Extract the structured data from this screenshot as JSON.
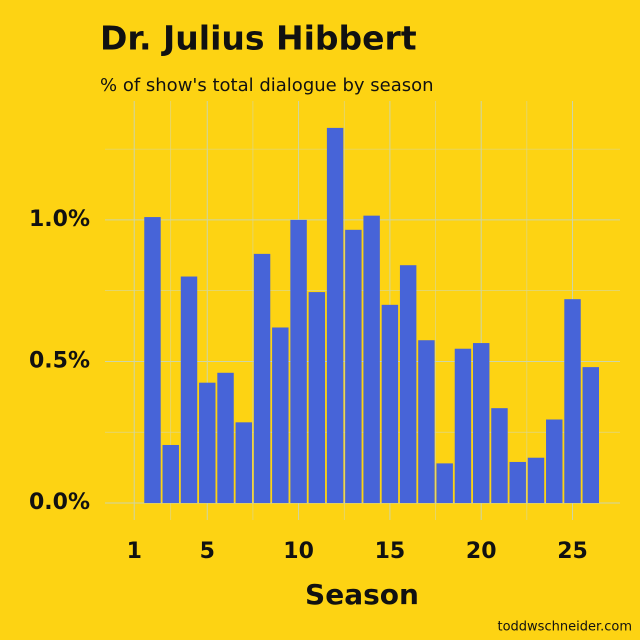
{
  "chart_data": {
    "type": "bar",
    "title": "Dr. Julius Hibbert",
    "subtitle": "% of show's total dialogue by season",
    "x_label": "Season",
    "source": "toddwschneider.com",
    "x": [
      2,
      3,
      4,
      5,
      6,
      7,
      8,
      9,
      10,
      11,
      12,
      13,
      14,
      15,
      16,
      17,
      18,
      19,
      20,
      21,
      22,
      23,
      24,
      25,
      26
    ],
    "values": [
      1.01,
      0.205,
      0.8,
      0.425,
      0.46,
      0.285,
      0.88,
      0.62,
      1.0,
      0.745,
      1.325,
      0.965,
      1.015,
      0.7,
      0.84,
      0.575,
      0.14,
      0.545,
      0.565,
      0.335,
      0.145,
      0.16,
      0.295,
      0.72,
      0.48
    ],
    "color": "#4764d8",
    "xlim": [
      -0.6,
      27.6
    ],
    "xticks": [
      1,
      5,
      10,
      15,
      20,
      25
    ],
    "minor_xticks": [
      3,
      7.5,
      12.5,
      17.5,
      22.5
    ],
    "ylim": [
      -0.06,
      1.42
    ],
    "yticks": [
      {
        "value": 0,
        "label": "0.0%"
      },
      {
        "value": 0.5,
        "label": "0.5%"
      },
      {
        "value": 1.0,
        "label": "1.0%"
      }
    ],
    "minor_yticks": [
      0.25,
      0.75,
      1.25
    ],
    "grid": true
  }
}
